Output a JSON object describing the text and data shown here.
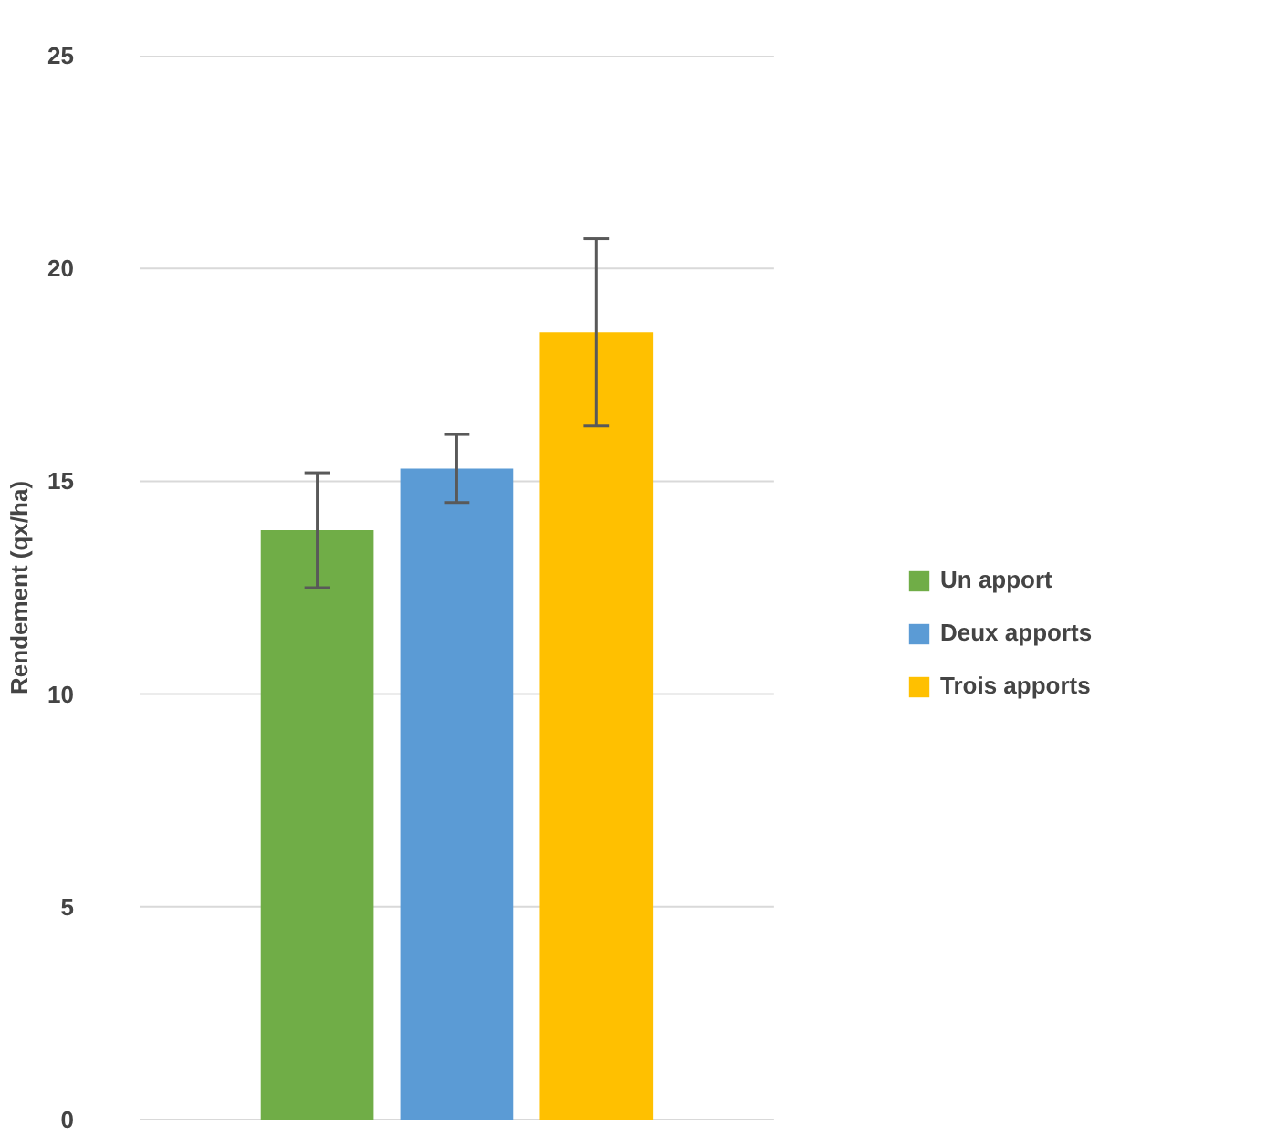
{
  "chart_data": {
    "type": "bar",
    "ylabel": "Rendement (qx/ha)",
    "categories": [
      null
    ],
    "series": [
      {
        "name": "Un apport",
        "color": "#70ad47",
        "values": [
          13.85
        ],
        "errors": [
          1.35
        ]
      },
      {
        "name": "Deux apports",
        "color": "#5b9bd5",
        "values": [
          15.3
        ],
        "errors": [
          0.8
        ]
      },
      {
        "name": "Trois apports",
        "color": "#ffc000",
        "values": [
          18.5
        ],
        "errors": [
          2.2
        ]
      }
    ],
    "ylim": [
      0,
      25
    ],
    "yticks": [
      0,
      5,
      10,
      15,
      20,
      25
    ],
    "grid": "y",
    "legend": "right",
    "tick_labels": "y"
  }
}
